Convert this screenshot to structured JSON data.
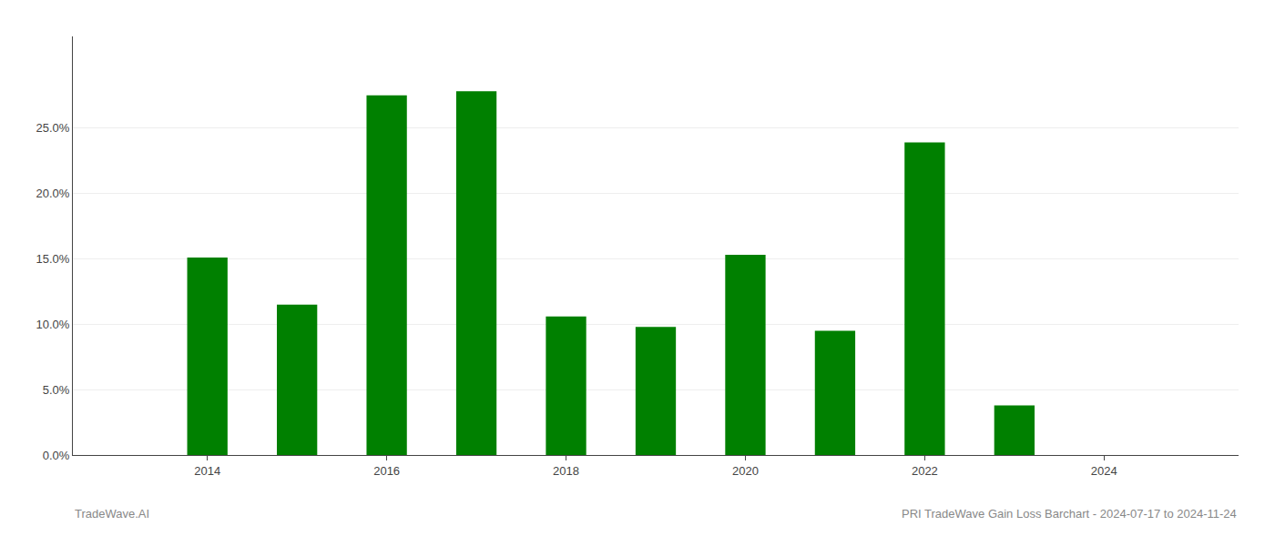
{
  "chart_data": {
    "type": "bar",
    "x": [
      2014,
      2015,
      2016,
      2017,
      2018,
      2019,
      2020,
      2021,
      2022,
      2023
    ],
    "values": [
      0.151,
      0.115,
      0.275,
      0.278,
      0.106,
      0.098,
      0.153,
      0.095,
      0.239,
      0.038
    ],
    "color": "#008000",
    "xlim": [
      2012.5,
      2025.5
    ],
    "xticks": [
      2014,
      2016,
      2018,
      2020,
      2022,
      2024
    ],
    "ylim": [
      0,
      0.32
    ],
    "yticks": [
      {
        "value": 0.0,
        "label": "0.0%"
      },
      {
        "value": 0.05,
        "label": "5.0%"
      },
      {
        "value": 0.1,
        "label": "10.0%"
      },
      {
        "value": 0.15,
        "label": "15.0%"
      },
      {
        "value": 0.2,
        "label": "20.0%"
      },
      {
        "value": 0.25,
        "label": "25.0%"
      }
    ],
    "grid": true,
    "annotations": [
      "TradeWave.AI",
      "PRI TradeWave Gain Loss Barchart - 2024-07-17 to 2024-11-24"
    ]
  }
}
